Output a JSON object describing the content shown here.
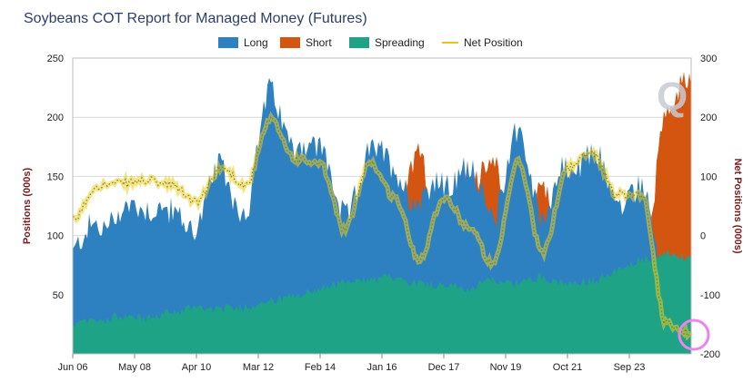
{
  "chart_data": {
    "type": "area",
    "title": "Soybeans COT Report for Managed Money (Futures)",
    "ylabel_left": "Positions (000s)",
    "ylabel_right": "Net Positions (000s)",
    "ylim_left": [
      0,
      250
    ],
    "ylim_right": [
      -200,
      300
    ],
    "yticks_left": [
      "250",
      "200",
      "150",
      "100",
      "50"
    ],
    "yticks_right": [
      "300",
      "200",
      "100",
      "0",
      "-100",
      "-200"
    ],
    "x_tick_labels": [
      "Jun 06",
      "May 08",
      "Apr 10",
      "Mar 12",
      "Feb 14",
      "Jan 16",
      "Dec 17",
      "Nov 19",
      "Oct 21",
      "Sep 23"
    ],
    "x_tick_fractions": [
      0.0,
      0.1,
      0.2,
      0.3,
      0.4,
      0.5,
      0.6,
      0.7,
      0.8,
      0.9
    ],
    "legend": [
      {
        "name": "Long",
        "color": "#2e81c1",
        "kind": "area"
      },
      {
        "name": "Short",
        "color": "#d4550f",
        "kind": "area"
      },
      {
        "name": "Spreading",
        "color": "#1fa387",
        "kind": "area"
      },
      {
        "name": "Net Position",
        "color": "#e8c21e",
        "kind": "line"
      }
    ],
    "watermark": "Q",
    "x_position_fraction": [
      0.0,
      0.04,
      0.08,
      0.12,
      0.16,
      0.2,
      0.24,
      0.28,
      0.32,
      0.36,
      0.4,
      0.44,
      0.48,
      0.52,
      0.56,
      0.6,
      0.64,
      0.68,
      0.72,
      0.76,
      0.8,
      0.84,
      0.88,
      0.92,
      0.96,
      1.0
    ],
    "series": [
      {
        "name": "Long",
        "values": [
          85,
          110,
          118,
          128,
          115,
          112,
          155,
          120,
          225,
          170,
          180,
          110,
          175,
          155,
          130,
          145,
          155,
          120,
          185,
          120,
          155,
          170,
          130,
          140,
          55,
          65
        ]
      },
      {
        "name": "Short",
        "values": [
          60,
          25,
          30,
          35,
          30,
          55,
          40,
          35,
          30,
          40,
          60,
          100,
          50,
          90,
          170,
          80,
          140,
          170,
          60,
          150,
          40,
          30,
          60,
          70,
          205,
          230
        ]
      },
      {
        "name": "Spreading",
        "values": [
          25,
          28,
          32,
          30,
          35,
          40,
          38,
          40,
          45,
          48,
          55,
          60,
          62,
          65,
          60,
          58,
          55,
          62,
          60,
          65,
          58,
          62,
          70,
          80,
          85,
          80
        ]
      },
      {
        "name": "Net Position",
        "values": [
          25,
          85,
          88,
          93,
          85,
          57,
          115,
          85,
          195,
          130,
          120,
          10,
          125,
          65,
          -40,
          65,
          15,
          -50,
          125,
          -30,
          115,
          140,
          70,
          70,
          -150,
          -165
        ]
      }
    ]
  }
}
